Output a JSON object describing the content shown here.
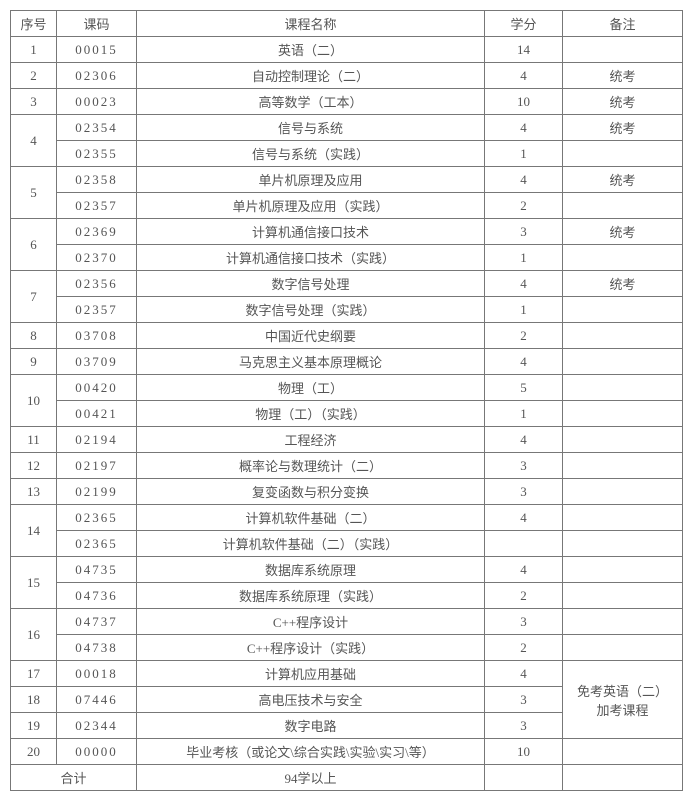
{
  "columns": {
    "seq": "序号",
    "code": "课码",
    "name": "课程名称",
    "credit": "学分",
    "note": "备注"
  },
  "rows": [
    {
      "seq": "1",
      "seqspan": 1,
      "code": "00015",
      "name": "英语（二）",
      "credit": "14",
      "note": "",
      "notespan": 1
    },
    {
      "seq": "2",
      "seqspan": 1,
      "code": "02306",
      "name": "自动控制理论（二）",
      "credit": "4",
      "note": "统考",
      "notespan": 1
    },
    {
      "seq": "3",
      "seqspan": 1,
      "code": "00023",
      "name": "高等数学（工本）",
      "credit": "10",
      "note": "统考",
      "notespan": 1
    },
    {
      "seq": "4",
      "seqspan": 2,
      "code": "02354",
      "name": "信号与系统",
      "credit": "4",
      "note": "统考",
      "notespan": 1
    },
    {
      "seq": "",
      "seqspan": 0,
      "code": "02355",
      "name": "信号与系统（实践）",
      "credit": "1",
      "note": "",
      "notespan": 1
    },
    {
      "seq": "5",
      "seqspan": 2,
      "code": "02358",
      "name": "单片机原理及应用",
      "credit": "4",
      "note": "统考",
      "notespan": 1
    },
    {
      "seq": "",
      "seqspan": 0,
      "code": "02357",
      "name": "单片机原理及应用（实践）",
      "credit": "2",
      "note": "",
      "notespan": 1
    },
    {
      "seq": "6",
      "seqspan": 2,
      "code": "02369",
      "name": "计算机通信接口技术",
      "credit": "3",
      "note": "统考",
      "notespan": 1
    },
    {
      "seq": "",
      "seqspan": 0,
      "code": "02370",
      "name": "计算机通信接口技术（实践）",
      "credit": "1",
      "note": "",
      "notespan": 1
    },
    {
      "seq": "7",
      "seqspan": 2,
      "code": "02356",
      "name": "数字信号处理",
      "credit": "4",
      "note": "统考",
      "notespan": 1
    },
    {
      "seq": "",
      "seqspan": 0,
      "code": "02357",
      "name": "数字信号处理（实践）",
      "credit": "1",
      "note": "",
      "notespan": 1
    },
    {
      "seq": "8",
      "seqspan": 1,
      "code": "03708",
      "name": "中国近代史纲要",
      "credit": "2",
      "note": "",
      "notespan": 1
    },
    {
      "seq": "9",
      "seqspan": 1,
      "code": "03709",
      "name": "马克思主义基本原理概论",
      "credit": "4",
      "note": "",
      "notespan": 1
    },
    {
      "seq": "10",
      "seqspan": 2,
      "code": "00420",
      "name": "物理（工）",
      "credit": "5",
      "note": "",
      "notespan": 1
    },
    {
      "seq": "",
      "seqspan": 0,
      "code": "00421",
      "name": "物理（工）（实践）",
      "credit": "1",
      "note": "",
      "notespan": 1
    },
    {
      "seq": "11",
      "seqspan": 1,
      "code": "02194",
      "name": "工程经济",
      "credit": "4",
      "note": "",
      "notespan": 1
    },
    {
      "seq": "12",
      "seqspan": 1,
      "code": "02197",
      "name": "概率论与数理统计（二）",
      "credit": "3",
      "note": "",
      "notespan": 1
    },
    {
      "seq": "13",
      "seqspan": 1,
      "code": "02199",
      "name": "复变函数与积分变换",
      "credit": "3",
      "note": "",
      "notespan": 1
    },
    {
      "seq": "14",
      "seqspan": 2,
      "code": "02365",
      "name": "计算机软件基础（二）",
      "credit": "4",
      "note": "",
      "notespan": 1
    },
    {
      "seq": "",
      "seqspan": 0,
      "code": "02365",
      "name": "计算机软件基础（二）（实践）",
      "credit": "",
      "note": "",
      "notespan": 1
    },
    {
      "seq": "15",
      "seqspan": 2,
      "code": "04735",
      "name": "数据库系统原理",
      "credit": "4",
      "note": "",
      "notespan": 1
    },
    {
      "seq": "",
      "seqspan": 0,
      "code": "04736",
      "name": "数据库系统原理（实践）",
      "credit": "2",
      "note": "",
      "notespan": 1
    },
    {
      "seq": "16",
      "seqspan": 2,
      "code": "04737",
      "name": "C++程序设计",
      "credit": "3",
      "note": "",
      "notespan": 1
    },
    {
      "seq": "",
      "seqspan": 0,
      "code": "04738",
      "name": "C++程序设计（实践）",
      "credit": "2",
      "note": "",
      "notespan": 1
    },
    {
      "seq": "17",
      "seqspan": 1,
      "code": "00018",
      "name": "计算机应用基础",
      "credit": "4",
      "note": "免考英语（二）\n加考课程",
      "notespan": 3
    },
    {
      "seq": "18",
      "seqspan": 1,
      "code": "07446",
      "name": "高电压技术与安全",
      "credit": "3",
      "note": "",
      "notespan": 0
    },
    {
      "seq": "19",
      "seqspan": 1,
      "code": "02344",
      "name": "数字电路",
      "credit": "3",
      "note": "",
      "notespan": 0
    },
    {
      "seq": "20",
      "seqspan": 1,
      "code": "00000",
      "name": "毕业考核（或论文\\综合实践\\实验\\实习\\等）",
      "credit": "10",
      "note": "",
      "notespan": 1
    }
  ],
  "total": {
    "label": "合计",
    "value": "94学以上"
  }
}
